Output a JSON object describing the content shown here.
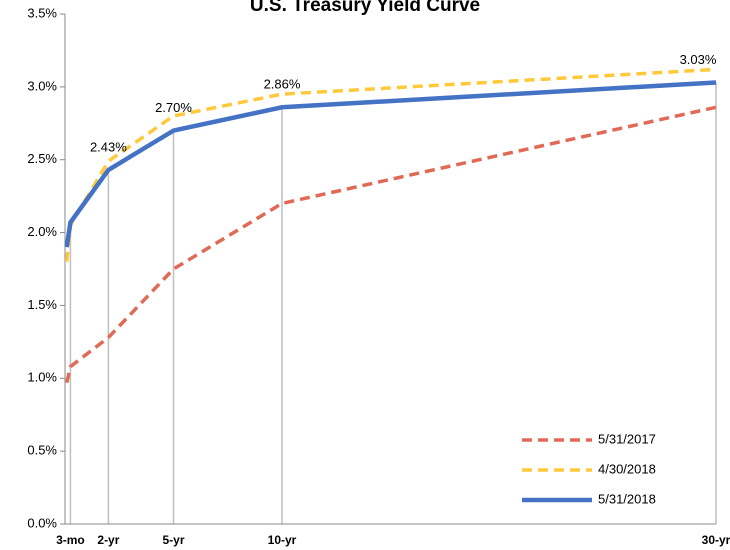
{
  "chart_data": {
    "type": "line",
    "title": "U.S. Treasury Yield Curve",
    "x": [
      0.08,
      0.25,
      2,
      5,
      10,
      30
    ],
    "xlim": [
      0,
      30
    ],
    "xticks": [
      {
        "value": 0.25,
        "label": "3-mo"
      },
      {
        "value": 2,
        "label": "2-yr"
      },
      {
        "value": 5,
        "label": "5-yr"
      },
      {
        "value": 10,
        "label": "10-yr"
      },
      {
        "value": 30,
        "label": "30-yr"
      }
    ],
    "ylim": [
      0,
      3.5
    ],
    "yticks": [
      {
        "value": 0,
        "label": "0.0%"
      },
      {
        "value": 0.5,
        "label": "0.5%"
      },
      {
        "value": 1,
        "label": "1.0%"
      },
      {
        "value": 1.5,
        "label": "1.5%"
      },
      {
        "value": 2,
        "label": "2.0%"
      },
      {
        "value": 2.5,
        "label": "2.5%"
      },
      {
        "value": 3,
        "label": "3.0%"
      },
      {
        "value": 3.5,
        "label": "3.5%"
      }
    ],
    "legend": "bottom-right",
    "series": [
      {
        "name": "5/31/2017",
        "color": "#e06a56",
        "dash": true,
        "values": [
          0.97,
          1.08,
          1.28,
          1.75,
          2.2,
          2.86
        ]
      },
      {
        "name": "4/30/2018",
        "color": "#ffc93c",
        "dash": true,
        "values": [
          1.8,
          2.05,
          2.49,
          2.8,
          2.95,
          3.12
        ]
      },
      {
        "name": "5/31/2018",
        "color": "#4472c4",
        "dash": false,
        "values": [
          1.9,
          2.07,
          2.43,
          2.7,
          2.86,
          3.03
        ],
        "value_labels": [
          null,
          null,
          "2.43%",
          "2.70%",
          "2.86%",
          "3.03%"
        ]
      }
    ]
  }
}
